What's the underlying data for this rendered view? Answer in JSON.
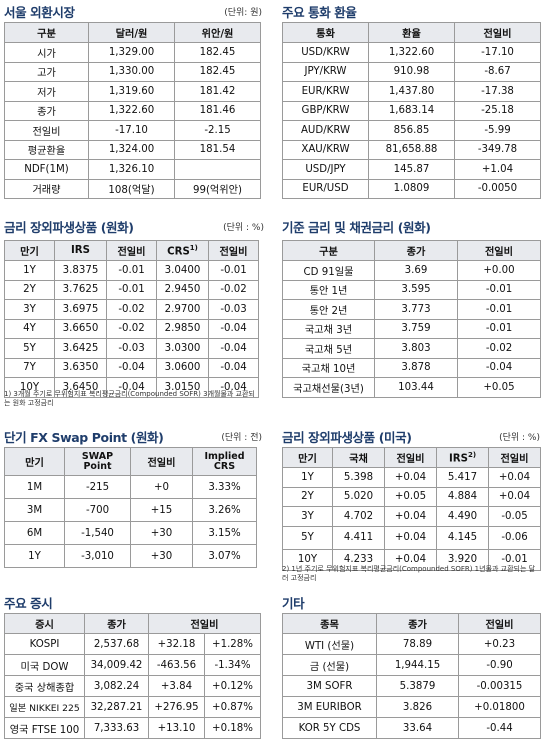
{
  "seoul_fx": {
    "title": "서울 외환시장",
    "unit": "(단위: 원)",
    "headers": [
      "구분",
      "달러/원",
      "위안/원"
    ],
    "rows": [
      [
        "시가",
        "1,329.00",
        "182.45"
      ],
      [
        "고가",
        "1,330.00",
        "182.45"
      ],
      [
        "저가",
        "1,319.60",
        "181.42"
      ],
      [
        "종가",
        "1,322.60",
        "181.46"
      ],
      [
        "전일비",
        "-17.10",
        "-2.15"
      ],
      [
        "평균환율",
        "1,324.00",
        "181.54"
      ],
      [
        "NDF(1M)",
        "1,326.10",
        ""
      ],
      [
        "거래량",
        "108(억달)",
        "99(억위안)"
      ]
    ]
  },
  "major_fx": {
    "title": "주요 통화 환율",
    "headers": [
      "통화",
      "환율",
      "전일비"
    ],
    "rows": [
      [
        "USD/KRW",
        "1,322.60",
        "-17.10"
      ],
      [
        "JPY/KRW",
        "910.98",
        "-8.67"
      ],
      [
        "EUR/KRW",
        "1,437.80",
        "-17.38"
      ],
      [
        "GBP/KRW",
        "1,683.14",
        "-25.18"
      ],
      [
        "AUD/KRW",
        "856.85",
        "-5.99"
      ],
      [
        "XAU/KRW",
        "81,658.88",
        "-349.78"
      ],
      [
        "USD/JPY",
        "145.87",
        "+1.04"
      ],
      [
        "EUR/USD",
        "1.0809",
        "-0.0050"
      ]
    ]
  },
  "krw_rate_deriv": {
    "title": "금리 장외파생상품 (원화)",
    "unit": "(단위 : %)",
    "headers": [
      "만기",
      "IRS",
      "전일비",
      "CRS",
      "전일비"
    ],
    "crs_sup": "1)",
    "rows": [
      [
        "1Y",
        "3.8375",
        "-0.01",
        "3.0400",
        "-0.01"
      ],
      [
        "2Y",
        "3.7625",
        "-0.01",
        "2.9450",
        "-0.02"
      ],
      [
        "3Y",
        "3.6975",
        "-0.02",
        "2.9700",
        "-0.03"
      ],
      [
        "4Y",
        "3.6650",
        "-0.02",
        "2.9850",
        "-0.04"
      ],
      [
        "5Y",
        "3.6425",
        "-0.03",
        "3.0300",
        "-0.04"
      ],
      [
        "7Y",
        "3.6350",
        "-0.04",
        "3.0600",
        "-0.04"
      ],
      [
        "10Y",
        "3.6450",
        "-0.04",
        "3.0150",
        "-0.04"
      ]
    ],
    "note": "1) 3개월 주기로 무위험지표 복리평균금리(Compounded SOFR) 3개월물과 교환되는 원화 고정금리"
  },
  "base_rates": {
    "title": "기준 금리 및 채권금리 (원화)",
    "headers": [
      "구분",
      "종가",
      "전일비"
    ],
    "rows": [
      [
        "CD 91일물",
        "3.69",
        "+0.00"
      ],
      [
        "통안 1년",
        "3.595",
        "-0.01"
      ],
      [
        "통안 2년",
        "3.773",
        "-0.01"
      ],
      [
        "국고채 3년",
        "3.759",
        "-0.01"
      ],
      [
        "국고채 5년",
        "3.803",
        "-0.02"
      ],
      [
        "국고채 10년",
        "3.878",
        "-0.04"
      ],
      [
        "국고채선물(3년)",
        "103.44",
        "+0.05"
      ]
    ]
  },
  "fx_swap": {
    "title": "단기 FX Swap Point (원화)",
    "unit": "(단위 : 전)",
    "headers": [
      "만기",
      "SWAP Point",
      "전일비",
      "Implied CRS"
    ],
    "header_lines": {
      "swap1": "SWAP",
      "swap2": "Point",
      "crs1": "Implied",
      "crs2": "CRS"
    },
    "rows": [
      [
        "1M",
        "-215",
        "+0",
        "3.33%"
      ],
      [
        "3M",
        "-700",
        "+15",
        "3.26%"
      ],
      [
        "6M",
        "-1,540",
        "+30",
        "3.15%"
      ],
      [
        "1Y",
        "-3,010",
        "+30",
        "3.07%"
      ]
    ]
  },
  "usd_rate_deriv": {
    "title": "금리 장외파생상품 (미국)",
    "unit": "(단위 : %)",
    "headers": [
      "만기",
      "국채",
      "전일비",
      "IRS",
      "전일비"
    ],
    "irs_sup": "2)",
    "rows": [
      [
        "1Y",
        "5.398",
        "+0.04",
        "5.417",
        "+0.04"
      ],
      [
        "2Y",
        "5.020",
        "+0.05",
        "4.884",
        "+0.04"
      ],
      [
        "3Y",
        "4.702",
        "+0.04",
        "4.490",
        "-0.05"
      ],
      [
        "5Y",
        "4.411",
        "+0.04",
        "4.145",
        "-0.06"
      ],
      [
        "10Y",
        "4.233",
        "+0.04",
        "3.920",
        "-0.01"
      ]
    ],
    "note": "2) 1년 주기로 무위험지표 복리평균금리(Compounded SOFR) 1년물과 교환되는 달러 고정금리"
  },
  "stocks": {
    "title": "주요 증시",
    "headers": [
      "증시",
      "종가",
      "전일비"
    ],
    "rows": [
      [
        "KOSPI",
        "2,537.68",
        "+32.18",
        "+1.28%"
      ],
      [
        "미국 DOW",
        "34,009.42",
        "-463.56",
        "-1.34%"
      ],
      [
        "중국 상해종합",
        "3,082.24",
        "+3.84",
        "+0.12%"
      ],
      [
        "일본 NIKKEI 225",
        "32,287.21",
        "+276.95",
        "+0.87%"
      ],
      [
        "영국 FTSE 100",
        "7,333.63",
        "+13.10",
        "+0.18%"
      ]
    ]
  },
  "others": {
    "title": "기타",
    "headers": [
      "종목",
      "종가",
      "전일비"
    ],
    "rows": [
      [
        "WTI (선물)",
        "78.89",
        "+0.23"
      ],
      [
        "금 (선물)",
        "1,944.15",
        "-0.90"
      ],
      [
        "3M SOFR",
        "5.3879",
        "-0.00315"
      ],
      [
        "3M EURIBOR",
        "3.826",
        "+0.01800"
      ],
      [
        "KOR 5Y CDS",
        "33.64",
        "-0.44"
      ]
    ]
  }
}
